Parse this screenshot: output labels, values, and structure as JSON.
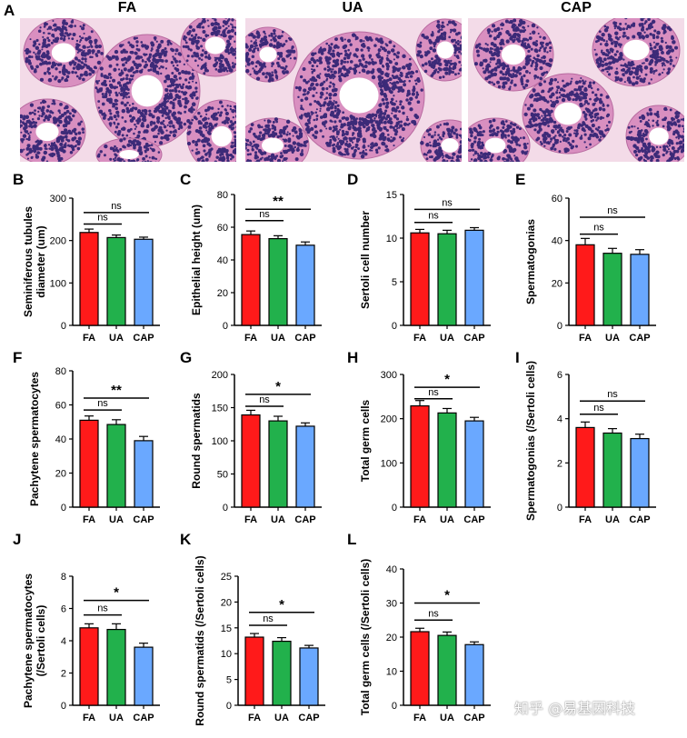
{
  "panel_A": {
    "label": "A",
    "titles": [
      "FA",
      "UA",
      "CAP"
    ],
    "colors": {
      "background": "#f3dbe8",
      "tissue": "#d98fc0",
      "nuclei": "#3c2a78",
      "lumen": "#ffffff"
    }
  },
  "colors": {
    "FA": "#ff1a1a",
    "UA": "#22b14c",
    "CAP": "#6aa8ff"
  },
  "watermark": "知乎 @易基因科技",
  "chart_data": [
    {
      "id": "B",
      "type": "bar",
      "label": "B",
      "ylabel": [
        "Seminiferous tubules",
        "diameter (um)"
      ],
      "categories": [
        "FA",
        "UA",
        "CAP"
      ],
      "values": [
        219,
        207,
        203
      ],
      "errors": [
        8,
        6,
        5
      ],
      "ylim": [
        0,
        300
      ],
      "yticks": [
        0,
        100,
        200,
        300
      ],
      "sig": [
        {
          "from": 0,
          "to": 1,
          "text": "ns",
          "y": 239
        },
        {
          "from": 0,
          "to": 2,
          "text": "ns",
          "y": 266
        }
      ]
    },
    {
      "id": "C",
      "type": "bar",
      "label": "C",
      "ylabel": [
        "Epithelial height (um)"
      ],
      "categories": [
        "FA",
        "UA",
        "CAP"
      ],
      "values": [
        55.5,
        53,
        49
      ],
      "errors": [
        2.2,
        1.8,
        2
      ],
      "ylim": [
        0,
        80
      ],
      "yticks": [
        0,
        20,
        40,
        60,
        80
      ],
      "sig": [
        {
          "from": 0,
          "to": 1,
          "text": "ns",
          "y": 64
        },
        {
          "from": 0,
          "to": 2,
          "text": "**",
          "y": 71
        }
      ]
    },
    {
      "id": "D",
      "type": "bar",
      "label": "D",
      "ylabel": [
        "Sertoli cell number"
      ],
      "categories": [
        "FA",
        "UA",
        "CAP"
      ],
      "values": [
        10.6,
        10.5,
        10.9
      ],
      "errors": [
        0.4,
        0.4,
        0.3
      ],
      "ylim": [
        0,
        15
      ],
      "yticks": [
        0,
        5,
        10,
        15
      ],
      "sig": [
        {
          "from": 0,
          "to": 1,
          "text": "ns",
          "y": 11.8
        },
        {
          "from": 0,
          "to": 2,
          "text": "ns",
          "y": 13.3
        }
      ]
    },
    {
      "id": "E",
      "type": "bar",
      "label": "E",
      "ylabel": [
        "Spermatogonias"
      ],
      "categories": [
        "FA",
        "UA",
        "CAP"
      ],
      "values": [
        38,
        34,
        33.5
      ],
      "errors": [
        3,
        2.3,
        2.2
      ],
      "ylim": [
        0,
        60
      ],
      "yticks": [
        0,
        20,
        40,
        60
      ],
      "sig": [
        {
          "from": 0,
          "to": 1,
          "text": "ns",
          "y": 43
        },
        {
          "from": 0,
          "to": 2,
          "text": "ns",
          "y": 51
        }
      ]
    },
    {
      "id": "F",
      "type": "bar",
      "label": "F",
      "ylabel": [
        "Pachytene spermatocytes"
      ],
      "categories": [
        "FA",
        "UA",
        "CAP"
      ],
      "values": [
        51,
        48.5,
        39
      ],
      "errors": [
        2.5,
        2.8,
        2.5
      ],
      "ylim": [
        0,
        80
      ],
      "yticks": [
        0,
        20,
        40,
        60,
        80
      ],
      "sig": [
        {
          "from": 0,
          "to": 1,
          "text": "ns",
          "y": 57
        },
        {
          "from": 0,
          "to": 2,
          "text": "**",
          "y": 64
        }
      ]
    },
    {
      "id": "G",
      "type": "bar",
      "label": "G",
      "ylabel": [
        "Round spermatids"
      ],
      "categories": [
        "FA",
        "UA",
        "CAP"
      ],
      "values": [
        139,
        130,
        122
      ],
      "errors": [
        7,
        7,
        5
      ],
      "ylim": [
        0,
        200
      ],
      "yticks": [
        0,
        50,
        100,
        150,
        200
      ],
      "sig": [
        {
          "from": 0,
          "to": 1,
          "text": "ns",
          "y": 152
        },
        {
          "from": 0,
          "to": 2,
          "text": "*",
          "y": 170
        }
      ]
    },
    {
      "id": "H",
      "type": "bar",
      "label": "H",
      "ylabel": [
        "Total germ cells"
      ],
      "categories": [
        "FA",
        "UA",
        "CAP"
      ],
      "values": [
        229,
        213,
        195
      ],
      "errors": [
        12,
        10,
        8
      ],
      "ylim": [
        0,
        300
      ],
      "yticks": [
        0,
        100,
        200,
        300
      ],
      "sig": [
        {
          "from": 0,
          "to": 1,
          "text": "ns",
          "y": 245
        },
        {
          "from": 0,
          "to": 2,
          "text": "*",
          "y": 271
        }
      ]
    },
    {
      "id": "I",
      "type": "bar",
      "label": "I",
      "ylabel": [
        "Spermatogonias (/Sertoli cells)"
      ],
      "categories": [
        "FA",
        "UA",
        "CAP"
      ],
      "values": [
        3.6,
        3.35,
        3.1
      ],
      "errors": [
        0.25,
        0.2,
        0.2
      ],
      "ylim": [
        0,
        6
      ],
      "yticks": [
        0,
        2,
        4,
        6
      ],
      "sig": [
        {
          "from": 0,
          "to": 1,
          "text": "ns",
          "y": 4.2
        },
        {
          "from": 0,
          "to": 2,
          "text": "ns",
          "y": 4.8
        }
      ]
    },
    {
      "id": "J",
      "type": "bar",
      "label": "J",
      "ylabel": [
        "Pachytene spermatocytes",
        "(/Sertoli cells)"
      ],
      "categories": [
        "FA",
        "UA",
        "CAP"
      ],
      "values": [
        4.8,
        4.7,
        3.6
      ],
      "errors": [
        0.25,
        0.35,
        0.25
      ],
      "ylim": [
        0,
        8
      ],
      "yticks": [
        0,
        2,
        4,
        6,
        8
      ],
      "sig": [
        {
          "from": 0,
          "to": 1,
          "text": "ns",
          "y": 5.6
        },
        {
          "from": 0,
          "to": 2,
          "text": "*",
          "y": 6.5
        }
      ]
    },
    {
      "id": "K",
      "type": "bar",
      "label": "K",
      "ylabel": [
        "Round spermatids (/Sertoli cells)"
      ],
      "categories": [
        "FA",
        "UA",
        "CAP"
      ],
      "values": [
        13.2,
        12.4,
        11.1
      ],
      "errors": [
        0.7,
        0.7,
        0.5
      ],
      "ylim": [
        0,
        25
      ],
      "yticks": [
        0,
        5,
        10,
        15,
        20,
        25
      ],
      "sig": [
        {
          "from": 0,
          "to": 1,
          "text": "ns",
          "y": 15.5
        },
        {
          "from": 0,
          "to": 2,
          "text": "*",
          "y": 18
        }
      ]
    },
    {
      "id": "L",
      "type": "bar",
      "label": "L",
      "ylabel": [
        "Total germ cells (/Sertoli cells)"
      ],
      "categories": [
        "FA",
        "UA",
        "CAP"
      ],
      "values": [
        21.6,
        20.5,
        17.8
      ],
      "errors": [
        1,
        1,
        0.8
      ],
      "ylim": [
        0,
        40
      ],
      "yticks": [
        0,
        10,
        20,
        30,
        40
      ],
      "sig": [
        {
          "from": 0,
          "to": 1,
          "text": "ns",
          "y": 25
        },
        {
          "from": 0,
          "to": 2,
          "text": "*",
          "y": 30
        }
      ]
    }
  ]
}
